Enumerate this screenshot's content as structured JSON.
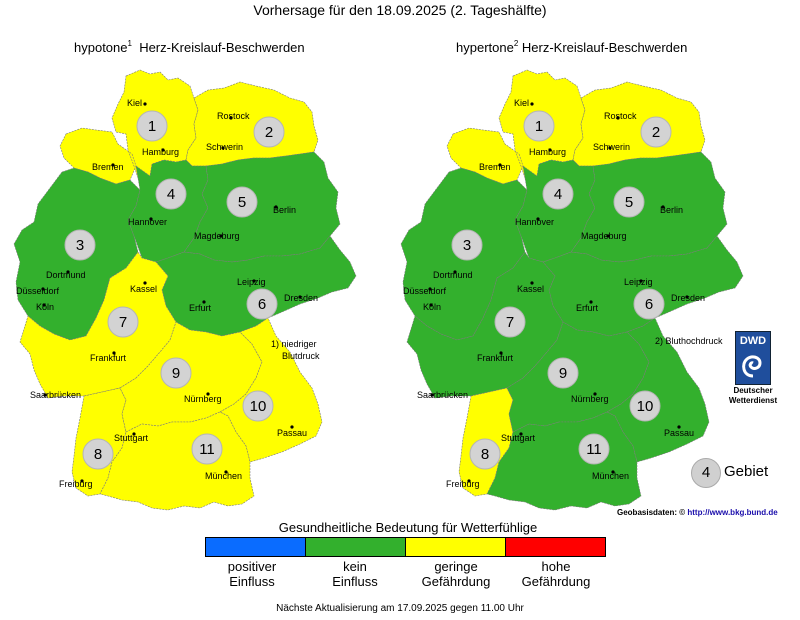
{
  "title": "Vorhersage für den 18.09.2025 (2. Tageshälfte)",
  "maps": [
    {
      "id": "hypotone",
      "title_prefix": "hypotone",
      "title_sup": "1",
      "title_suffix": "Herz-Kreislauf-Beschwerden",
      "region_levels": {
        "1": "geringe",
        "2": "geringe",
        "3": "kein",
        "4": "kein",
        "5": "kein",
        "6": "kein",
        "7": "geringe",
        "8": "geringe",
        "9": "geringe",
        "10": "geringe",
        "11": "geringe"
      }
    },
    {
      "id": "hypertone",
      "title_prefix": "hypertone",
      "title_sup": "2",
      "title_suffix": "Herz-Kreislauf-Beschwerden",
      "region_levels": {
        "1": "geringe",
        "2": "geringe",
        "3": "kein",
        "4": "kein",
        "5": "kein",
        "6": "kein",
        "7": "kein",
        "8": "geringe",
        "9": "kein",
        "10": "kein",
        "11": "kein"
      }
    }
  ],
  "cities": [
    "Kiel",
    "Rostock",
    "Hamburg",
    "Schwerin",
    "Bremen",
    "Hannover",
    "Berlin",
    "Magdeburg",
    "Dortmund",
    "Düsseldorf",
    "Köln",
    "Kassel",
    "Leipzig",
    "Dresden",
    "Erfurt",
    "Frankfurt",
    "Saarbrücken",
    "Nürnberg",
    "Stuttgart",
    "Passau",
    "München",
    "Freiburg"
  ],
  "region_numbers": [
    "1",
    "2",
    "3",
    "4",
    "5",
    "6",
    "7",
    "8",
    "9",
    "10",
    "11"
  ],
  "notes": {
    "hypotone_line1": "1) niedriger",
    "hypotone_line2": "Blutdruck",
    "hypertone": "2) Bluthochdruck"
  },
  "dwd": {
    "logo_text": "DWD",
    "line1": "Deutscher",
    "line2": "Wetterdienst"
  },
  "gebiet": {
    "number": "4",
    "label": "Gebiet"
  },
  "geobasis": {
    "label": "Geobasisdaten: ©",
    "url": "http://www.bkg.bund.de"
  },
  "legend": {
    "title": "Gesundheitliche Bedeutung für Wetterfühlige",
    "items": [
      {
        "key": "positiver",
        "line1": "positiver",
        "line2": "Einfluss",
        "color": "#0a6cff"
      },
      {
        "key": "kein",
        "line1": "kein",
        "line2": "Einfluss",
        "color": "#33b02d"
      },
      {
        "key": "geringe",
        "line1": "geringe",
        "line2": "Gefährdung",
        "color": "#ffff00"
      },
      {
        "key": "hohe",
        "line1": "hohe",
        "line2": "Gefährdung",
        "color": "#ff0000"
      }
    ]
  },
  "footer": "Nächste Aktualisierung am 17.09.2025 gegen 11.00 Uhr"
}
